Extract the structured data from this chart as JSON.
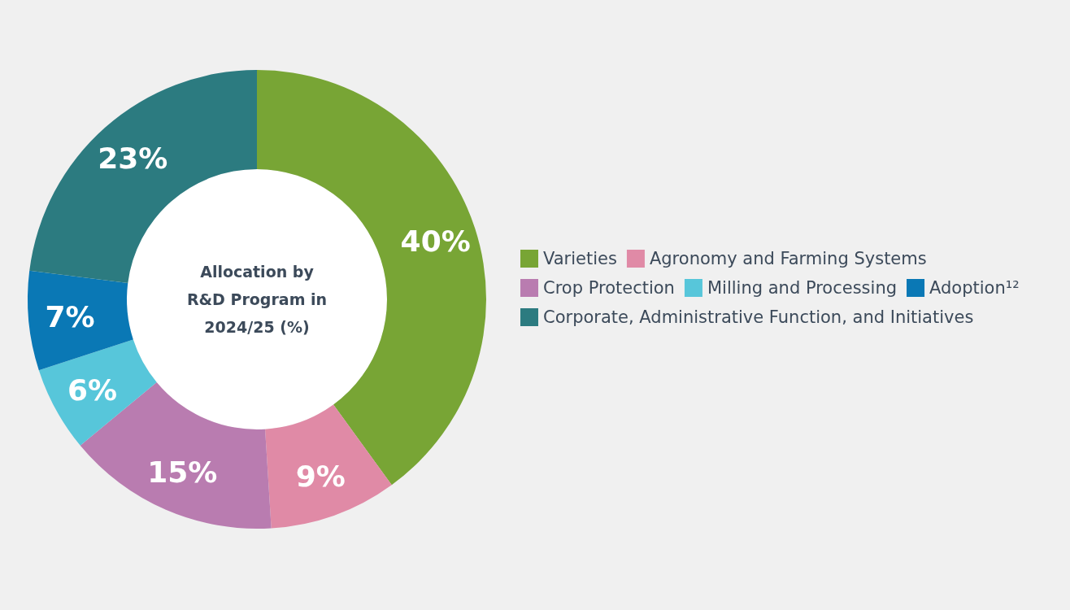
{
  "chart_data": {
    "type": "donut",
    "title": "Allocation by R&D Program in 2024/25 (%)",
    "categories": [
      "Varieties",
      "Agronomy and Farming Systems",
      "Crop Protection",
      "Milling and Processing",
      "Adoption¹²",
      "Corporate, Administrative Function, and Initiatives"
    ],
    "values": [
      40,
      9,
      15,
      6,
      7,
      23
    ],
    "colors": [
      "#78a535",
      "#e08aa6",
      "#b97cb0",
      "#57c6da",
      "#0a78b5",
      "#2c7b80"
    ],
    "value_labels": [
      "40%",
      "9%",
      "15%",
      "6%",
      "7%",
      "23%"
    ],
    "legend": "right"
  }
}
